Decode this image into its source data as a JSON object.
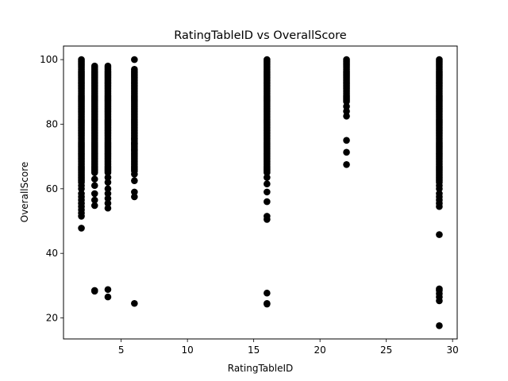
{
  "chart_data": {
    "type": "scatter",
    "title": "RatingTableID vs OverallScore",
    "xlabel": "RatingTableID",
    "ylabel": "OverallScore",
    "xlim": [
      0.65,
      30.35
    ],
    "ylim": [
      13.5,
      104.2
    ],
    "xticks": [
      5,
      10,
      15,
      20,
      25,
      30
    ],
    "yticks": [
      20,
      40,
      60,
      80,
      100
    ],
    "grid": false,
    "marker_color": "#000000",
    "series": [
      {
        "columns": [
          {
            "x": 2,
            "dense_range": [
              62,
              100
            ],
            "outliers": [
              47.8,
              51.5,
              52.5,
              53.5,
              54.5,
              55.5,
              56.5,
              57.5,
              58.5,
              60,
              61
            ]
          },
          {
            "x": 3,
            "dense_range": [
              65,
              98
            ],
            "outliers": [
              28.3,
              28.5,
              54.8,
              56.5,
              58.5,
              61,
              63
            ]
          },
          {
            "x": 4,
            "dense_range": [
              65,
              98
            ],
            "outliers": [
              26.5,
              28.8,
              54,
              55.5,
              57,
              58.5,
              60,
              62,
              63.5
            ]
          },
          {
            "x": 6,
            "dense_range": [
              66,
              97
            ],
            "outliers": [
              24.5,
              57.5,
              59,
              62.5,
              64.5,
              65.5,
              72,
              74,
              75.5,
              100
            ]
          },
          {
            "x": 16,
            "dense_range": [
              65,
              100
            ],
            "outliers": [
              24.3,
              24.5,
              27.7,
              50.5,
              51.5,
              56,
              59,
              61.5,
              63.5
            ]
          },
          {
            "x": 22,
            "dense_range": [
              87,
              100
            ],
            "outliers": [
              67.5,
              71.3,
              75,
              82.5,
              84,
              85.5
            ]
          },
          {
            "x": 29,
            "dense_range": [
              62,
              100
            ],
            "outliers": [
              17.6,
              25.3,
              26.5,
              27.5,
              28.5,
              29,
              45.8,
              54.5,
              55.5,
              56.5,
              57.5,
              58.5,
              60,
              61
            ]
          }
        ]
      }
    ]
  }
}
